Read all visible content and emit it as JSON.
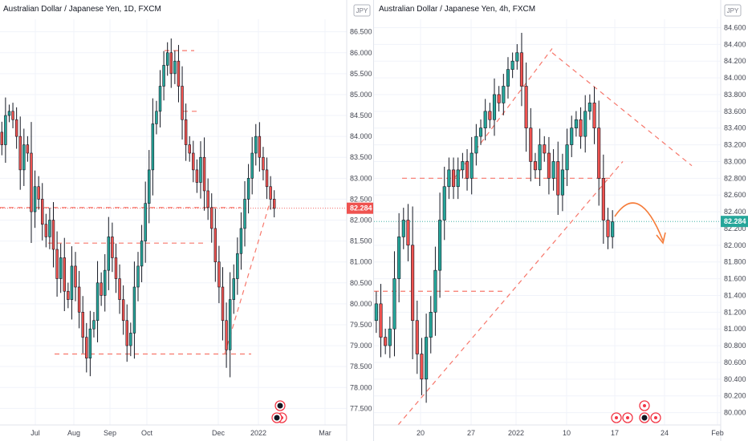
{
  "chart_data": [
    {
      "type": "candlestick",
      "title": "Australian Dollar / Japanese Yen, 1D, FXCM",
      "unit": "JPY",
      "last_price": "82.284",
      "y_ticks": [
        "86.500",
        "86.000",
        "85.500",
        "85.000",
        "84.500",
        "84.000",
        "83.500",
        "83.000",
        "82.500",
        "82.000",
        "81.500",
        "81.000",
        "80.500",
        "80.000",
        "79.500",
        "79.000",
        "78.500",
        "78.000",
        "77.500"
      ],
      "ylim": [
        77.2,
        86.8
      ],
      "x_ticks": [
        "Jul",
        "Aug",
        "Sep",
        "Oct",
        "Dec",
        "2022",
        "Mar"
      ],
      "bull_color": "#26a69a",
      "bear_color": "#ef5350",
      "horizontal_levels": [
        82.3,
        81.45,
        78.8,
        86.05,
        84.6
      ],
      "close_path": [
        83.8,
        84.5,
        84.6,
        84.4,
        84.0,
        83.2,
        83.8,
        83.6,
        82.2,
        82.8,
        82.5,
        81.9,
        81.6,
        82.0,
        81.3,
        80.6,
        81.1,
        80.3,
        80.1,
        80.9,
        80.4,
        79.8,
        79.2,
        78.7,
        79.4,
        79.6,
        80.5,
        80.2,
        80.8,
        81.6,
        81.1,
        80.6,
        80.1,
        79.6,
        79.0,
        79.3,
        80.4,
        80.9,
        81.5,
        82.4,
        83.2,
        84.3,
        84.6,
        85.2,
        85.7,
        86.0,
        85.5,
        85.8,
        85.2,
        84.4,
        83.8,
        83.6,
        83.2,
        82.9,
        83.5,
        82.7,
        82.3,
        81.8,
        81.0,
        80.4,
        79.6,
        78.9,
        80.1,
        80.6,
        81.2,
        81.8,
        82.5,
        83.0,
        83.6,
        84.0,
        83.5,
        83.2,
        82.8,
        82.5,
        82.28
      ],
      "close_price_labels": [],
      "marker": "event-icons"
    },
    {
      "type": "candlestick",
      "title": "Australian Dollar / Japanese Yen, 4h, FXCM",
      "unit": "JPY",
      "last_price": "82.284",
      "y_ticks": [
        "84.600",
        "84.400",
        "84.200",
        "84.000",
        "83.800",
        "83.600",
        "83.400",
        "83.200",
        "83.000",
        "82.800",
        "82.600",
        "82.400",
        "82.200",
        "82.000",
        "81.800",
        "81.600",
        "81.400",
        "81.200",
        "81.000",
        "80.800",
        "80.600",
        "80.400",
        "80.200",
        "80.000"
      ],
      "ylim": [
        79.9,
        84.7
      ],
      "x_ticks": [
        "20",
        "27",
        "2022",
        "10",
        "17",
        "24",
        "Feb"
      ],
      "bull_color": "#26a69a",
      "bear_color": "#ef5350",
      "horizontal_levels": [
        82.8,
        81.45
      ],
      "close_path": [
        81.3,
        80.9,
        80.8,
        81.0,
        81.6,
        82.1,
        82.3,
        82.0,
        81.1,
        80.7,
        80.4,
        80.9,
        81.2,
        81.7,
        82.3,
        82.7,
        82.9,
        82.7,
        82.9,
        83.0,
        82.8,
        83.1,
        83.3,
        83.4,
        83.6,
        83.5,
        83.8,
        83.7,
        83.9,
        84.1,
        84.2,
        84.3,
        83.9,
        83.4,
        83.0,
        82.9,
        83.2,
        83.1,
        82.8,
        83.0,
        82.6,
        82.9,
        83.2,
        83.4,
        83.5,
        83.3,
        83.6,
        83.7,
        83.4,
        82.8,
        82.3,
        82.1,
        82.28
      ]
    }
  ],
  "icons": [
    "event-icons"
  ]
}
